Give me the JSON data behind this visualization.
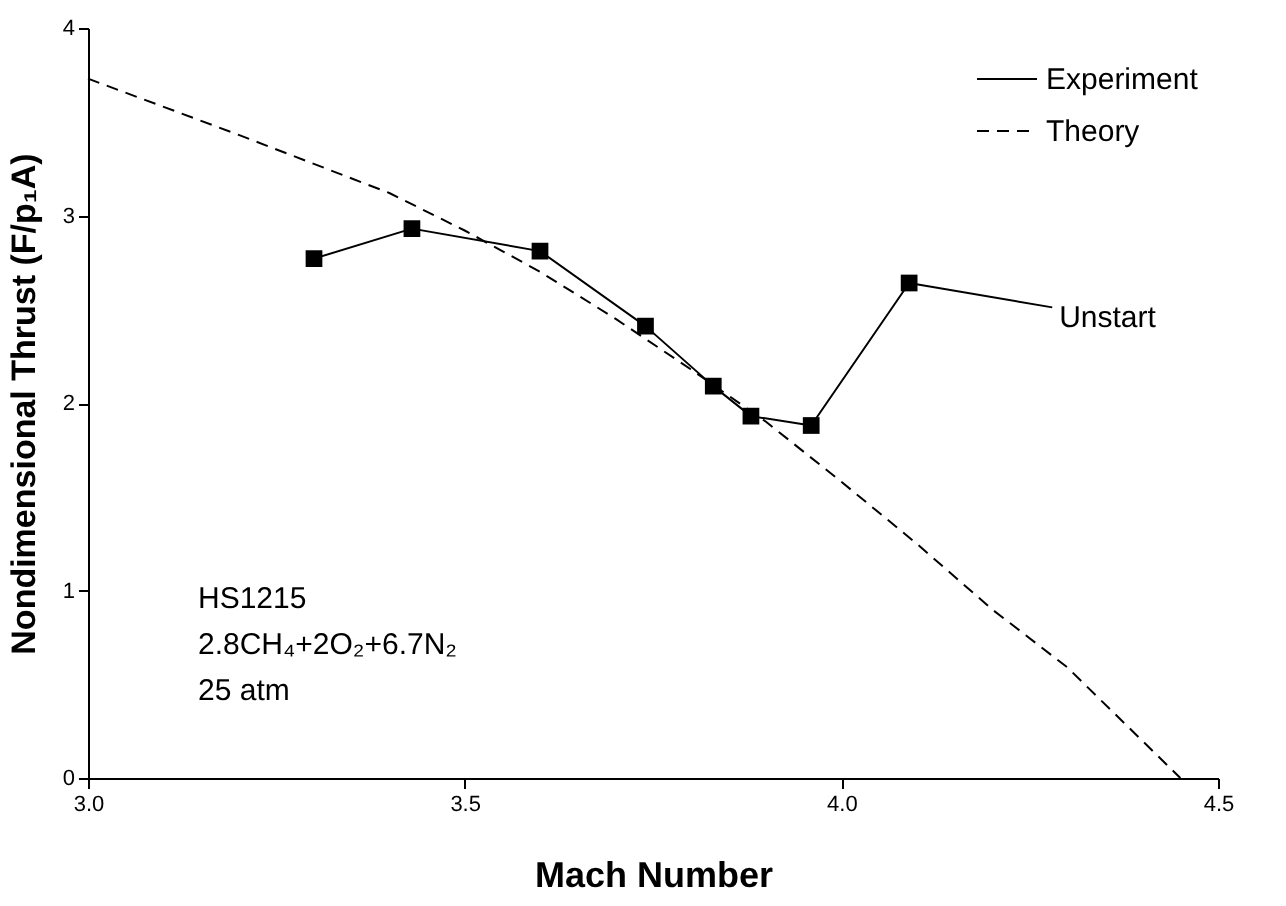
{
  "chart_data": {
    "type": "line",
    "xlabel": "Mach Number",
    "ylabel": "Nondimensional Thrust (F/p₁A)",
    "xlim": [
      3.0,
      4.5
    ],
    "xticks": [
      {
        "value": 3.0,
        "label": "3.0"
      },
      {
        "value": 3.5,
        "label": "3.5"
      },
      {
        "value": 4.0,
        "label": "4.0"
      },
      {
        "value": 4.5,
        "label": "4.5"
      }
    ],
    "ylim": [
      0,
      4
    ],
    "yticks": [
      0,
      1,
      2,
      3,
      4
    ],
    "grid": false,
    "legend": "top right",
    "series": [
      {
        "name": "Experiment",
        "color": "#000000",
        "marker": "square",
        "line_style": "solid",
        "x": [
          3.3,
          3.43,
          3.6,
          3.74,
          3.83,
          3.88,
          3.96,
          4.09
        ],
        "values": [
          2.77,
          2.93,
          2.81,
          2.41,
          2.09,
          1.93,
          1.88,
          2.64
        ]
      },
      {
        "name": "Theory",
        "color": "#000000",
        "marker": "none",
        "line_style": "dashed",
        "x": [
          3.0,
          3.2,
          3.4,
          3.5,
          3.6,
          3.7,
          3.8,
          3.9,
          4.0,
          4.1,
          4.2,
          4.3,
          4.45
        ],
        "values": [
          3.73,
          3.43,
          3.12,
          2.92,
          2.7,
          2.45,
          2.18,
          1.9,
          1.58,
          1.25,
          0.9,
          0.59,
          0.0
        ]
      }
    ],
    "annotations": [
      {
        "text": "Unstart",
        "x": 4.09,
        "y": 2.64
      },
      "HS1215",
      "2.8CH₄+2O₂+6.7N₂",
      "25 atm"
    ]
  }
}
